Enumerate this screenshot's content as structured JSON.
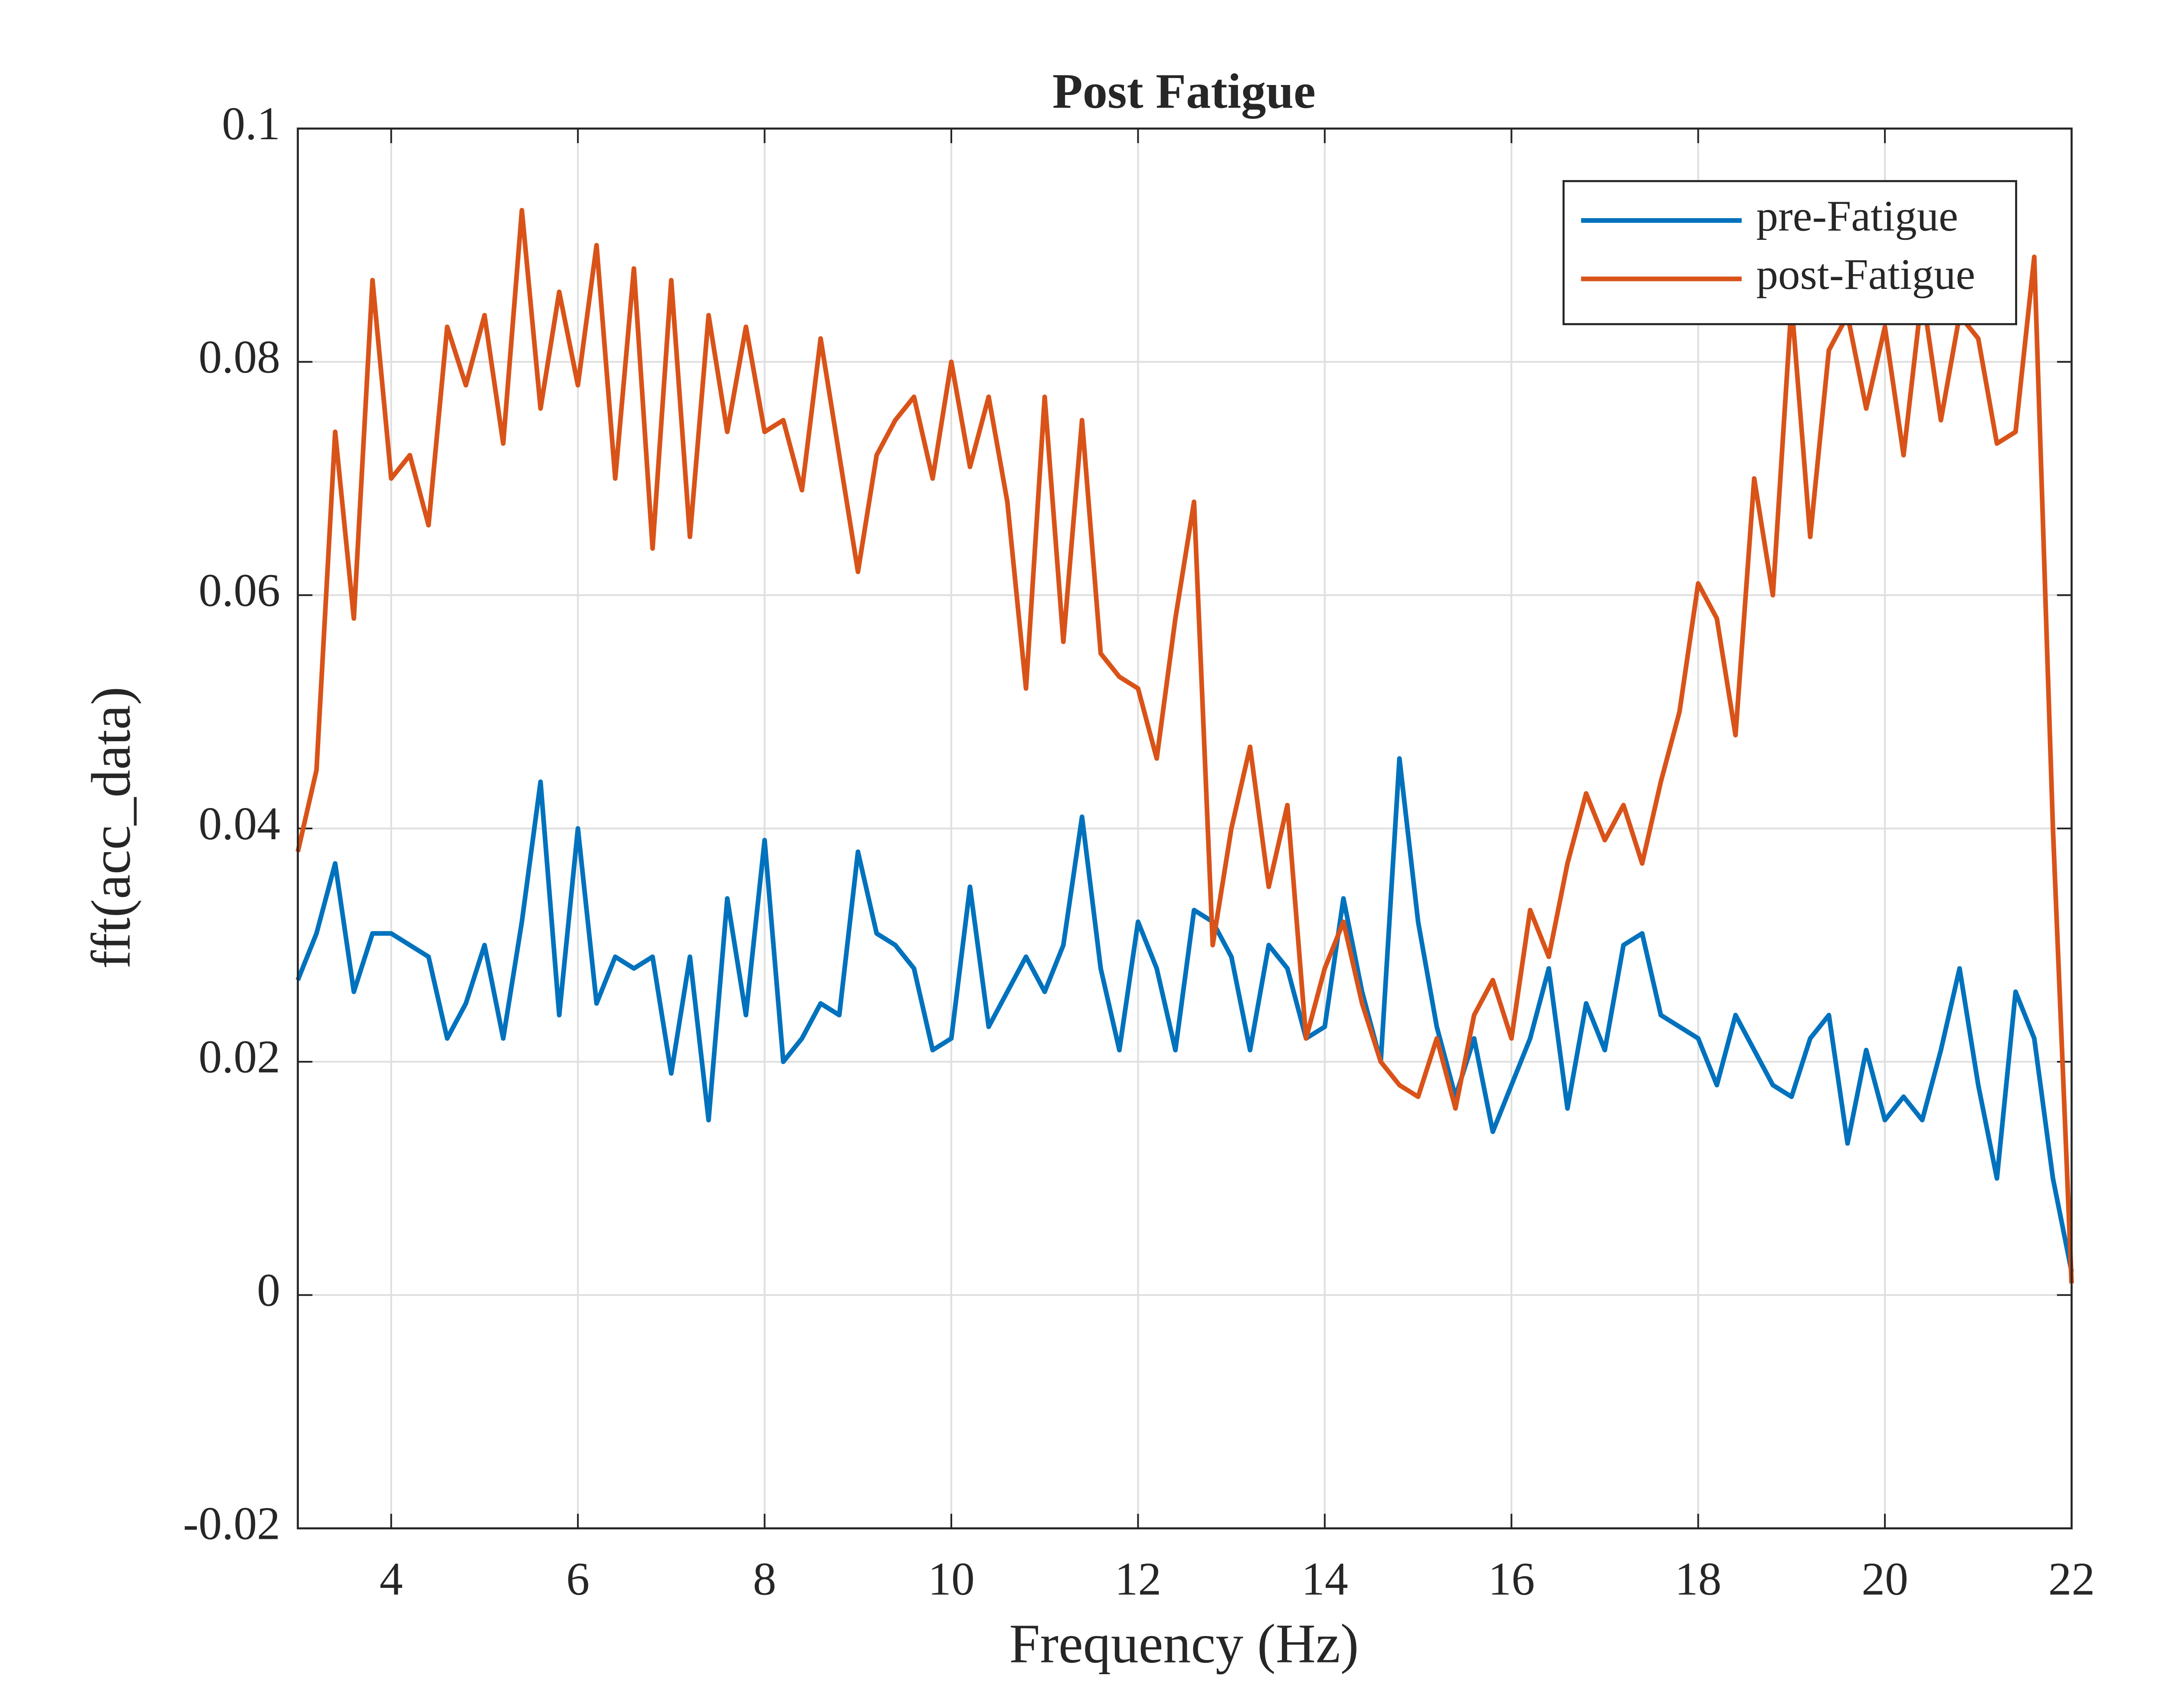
{
  "chart_data": {
    "type": "line",
    "title": "Post Fatigue",
    "x_label": "Frequency (Hz)",
    "y_label": "fft(acc_data)",
    "x": [
      3.0,
      3.2,
      3.4,
      3.6,
      3.8,
      4.0,
      4.2,
      4.4,
      4.6,
      4.8,
      5.0,
      5.2,
      5.4,
      5.6,
      5.8,
      6.0,
      6.2,
      6.4,
      6.6,
      6.8,
      7.0,
      7.2,
      7.4,
      7.6,
      7.8,
      8.0,
      8.2,
      8.4,
      8.6,
      8.8,
      9.0,
      9.2,
      9.4,
      9.6,
      9.8,
      10.0,
      10.2,
      10.4,
      10.6,
      10.8,
      11.0,
      11.2,
      11.4,
      11.6,
      11.8,
      12.0,
      12.2,
      12.4,
      12.6,
      12.8,
      13.0,
      13.2,
      13.4,
      13.6,
      13.8,
      14.0,
      14.2,
      14.4,
      14.6,
      14.8,
      15.0,
      15.2,
      15.4,
      15.6,
      15.8,
      16.0,
      16.2,
      16.4,
      16.6,
      16.8,
      17.0,
      17.2,
      17.4,
      17.6,
      17.8,
      18.0,
      18.2,
      18.4,
      18.6,
      18.8,
      19.0,
      19.2,
      19.4,
      19.6,
      19.8,
      20.0,
      20.2,
      20.4,
      20.6,
      20.8,
      21.0,
      21.2,
      21.4,
      21.6,
      21.8,
      22.0
    ],
    "series": [
      {
        "name": "pre-Fatigue",
        "color": "#0072bd",
        "values": [
          0.027,
          0.031,
          0.037,
          0.026,
          0.031,
          0.031,
          0.03,
          0.029,
          0.022,
          0.025,
          0.03,
          0.022,
          0.032,
          0.044,
          0.024,
          0.04,
          0.025,
          0.029,
          0.028,
          0.029,
          0.019,
          0.029,
          0.015,
          0.034,
          0.024,
          0.039,
          0.02,
          0.022,
          0.025,
          0.024,
          0.038,
          0.031,
          0.03,
          0.028,
          0.021,
          0.022,
          0.035,
          0.023,
          0.026,
          0.029,
          0.026,
          0.03,
          0.041,
          0.028,
          0.021,
          0.032,
          0.028,
          0.021,
          0.033,
          0.032,
          0.029,
          0.021,
          0.03,
          0.028,
          0.022,
          0.023,
          0.034,
          0.026,
          0.02,
          0.046,
          0.032,
          0.023,
          0.017,
          0.022,
          0.014,
          0.018,
          0.022,
          0.028,
          0.016,
          0.025,
          0.021,
          0.03,
          0.031,
          0.024,
          0.023,
          0.022,
          0.018,
          0.024,
          0.021,
          0.018,
          0.017,
          0.022,
          0.024,
          0.013,
          0.021,
          0.015,
          0.017,
          0.015,
          0.021,
          0.028,
          0.018,
          0.01,
          0.026,
          0.022,
          0.01,
          0.002
        ]
      },
      {
        "name": "post-Fatigue",
        "color": "#d95319",
        "values": [
          0.038,
          0.045,
          0.074,
          0.058,
          0.087,
          0.07,
          0.072,
          0.066,
          0.083,
          0.078,
          0.084,
          0.073,
          0.093,
          0.076,
          0.086,
          0.078,
          0.09,
          0.07,
          0.088,
          0.064,
          0.087,
          0.065,
          0.084,
          0.074,
          0.083,
          0.074,
          0.075,
          0.069,
          0.082,
          0.072,
          0.062,
          0.072,
          0.075,
          0.077,
          0.07,
          0.08,
          0.071,
          0.077,
          0.068,
          0.052,
          0.077,
          0.056,
          0.075,
          0.055,
          0.053,
          0.052,
          0.046,
          0.058,
          0.068,
          0.03,
          0.04,
          0.047,
          0.035,
          0.042,
          0.022,
          0.028,
          0.032,
          0.025,
          0.02,
          0.018,
          0.017,
          0.022,
          0.016,
          0.024,
          0.027,
          0.022,
          0.033,
          0.029,
          0.037,
          0.043,
          0.039,
          0.042,
          0.037,
          0.044,
          0.05,
          0.061,
          0.058,
          0.048,
          0.07,
          0.06,
          0.085,
          0.065,
          0.081,
          0.084,
          0.076,
          0.083,
          0.072,
          0.086,
          0.075,
          0.084,
          0.082,
          0.073,
          0.074,
          0.089,
          0.04,
          0.001
        ]
      }
    ],
    "xlim": [
      3,
      22
    ],
    "xticks": [
      4,
      6,
      8,
      10,
      12,
      14,
      16,
      18,
      20,
      22
    ],
    "ylim": [
      -0.02,
      0.1
    ],
    "yticks": [
      -0.02,
      0,
      0.02,
      0.04,
      0.06,
      0.08,
      0.1
    ],
    "grid": true,
    "legend": "northeast"
  }
}
